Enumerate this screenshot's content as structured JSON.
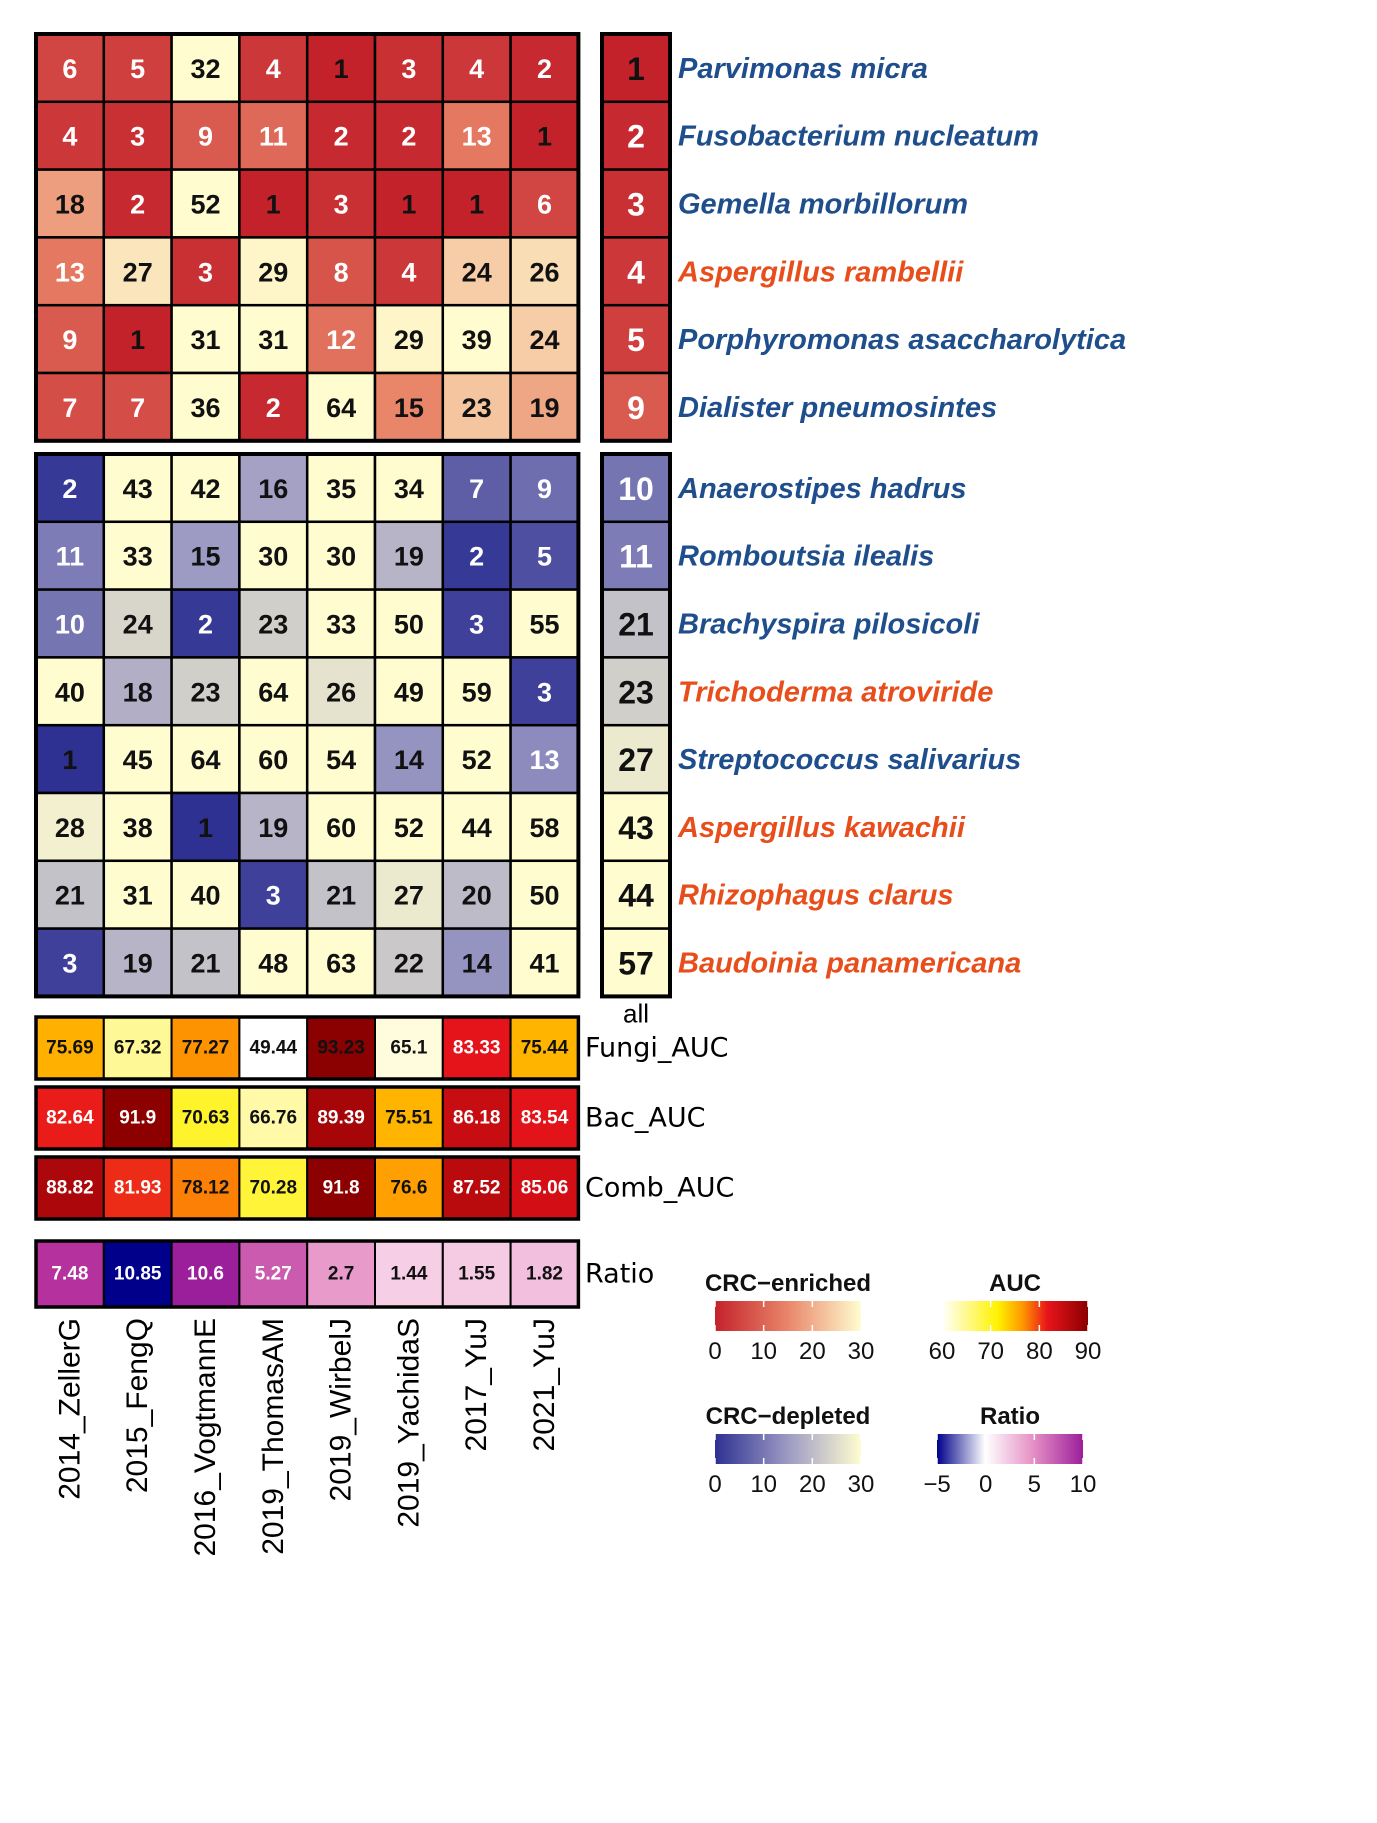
{
  "chart_data": {
    "type": "heatmap",
    "columns": [
      "2014_ZellerG",
      "2015_FengQ",
      "2016_VogtmannE",
      "2019_ThomasAM",
      "2019_WirbelJ",
      "2019_YachidaS",
      "2017_YuJ",
      "2021_YuJ"
    ],
    "all_column_label": "all",
    "enriched": {
      "rows": [
        {
          "species": "Parvimonas micra",
          "kingdom": "bacteria",
          "ranks": [
            6,
            5,
            32,
            4,
            1,
            3,
            4,
            2
          ],
          "all": 1
        },
        {
          "species": "Fusobacterium nucleatum",
          "kingdom": "bacteria",
          "ranks": [
            4,
            3,
            9,
            11,
            2,
            2,
            13,
            1
          ],
          "all": 2
        },
        {
          "species": "Gemella morbillorum",
          "kingdom": "bacteria",
          "ranks": [
            18,
            2,
            52,
            1,
            3,
            1,
            1,
            6
          ],
          "all": 3
        },
        {
          "species": "Aspergillus rambellii",
          "kingdom": "fungi",
          "ranks": [
            13,
            27,
            3,
            29,
            8,
            4,
            24,
            26
          ],
          "all": 4
        },
        {
          "species": "Porphyromonas asaccharolytica",
          "kingdom": "bacteria",
          "ranks": [
            9,
            1,
            31,
            31,
            12,
            29,
            39,
            24
          ],
          "all": 5
        },
        {
          "species": "Dialister pneumosintes",
          "kingdom": "bacteria",
          "ranks": [
            7,
            7,
            36,
            2,
            64,
            15,
            23,
            19
          ],
          "all": 9
        }
      ]
    },
    "depleted": {
      "rows": [
        {
          "species": "Anaerostipes hadrus",
          "kingdom": "bacteria",
          "ranks": [
            2,
            43,
            42,
            16,
            35,
            34,
            7,
            9
          ],
          "all": 10
        },
        {
          "species": "Romboutsia ilealis",
          "kingdom": "bacteria",
          "ranks": [
            11,
            33,
            15,
            30,
            30,
            19,
            2,
            5
          ],
          "all": 11
        },
        {
          "species": "Brachyspira pilosicoli",
          "kingdom": "bacteria",
          "ranks": [
            10,
            24,
            2,
            23,
            33,
            50,
            3,
            55
          ],
          "all": 21
        },
        {
          "species": "Trichoderma atroviride",
          "kingdom": "fungi",
          "ranks": [
            40,
            18,
            23,
            64,
            26,
            49,
            59,
            3
          ],
          "all": 23
        },
        {
          "species": "Streptococcus salivarius",
          "kingdom": "bacteria",
          "ranks": [
            1,
            45,
            64,
            60,
            54,
            14,
            52,
            13
          ],
          "all": 27
        },
        {
          "species": "Aspergillus kawachii",
          "kingdom": "fungi",
          "ranks": [
            28,
            38,
            1,
            19,
            60,
            52,
            44,
            58
          ],
          "all": 43
        },
        {
          "species": "Rhizophagus clarus",
          "kingdom": "fungi",
          "ranks": [
            21,
            31,
            40,
            3,
            21,
            27,
            20,
            50
          ],
          "all": 44
        },
        {
          "species": "Baudoinia panamericana",
          "kingdom": "fungi",
          "ranks": [
            3,
            19,
            21,
            48,
            63,
            22,
            14,
            41
          ],
          "all": 57
        }
      ]
    },
    "auc_rows": [
      {
        "label": "Fungi_AUC",
        "values": [
          75.69,
          67.32,
          77.27,
          49.44,
          93.23,
          65.1,
          83.33,
          75.44
        ]
      },
      {
        "label": "Bac_AUC",
        "values": [
          82.64,
          91.9,
          70.63,
          66.76,
          89.39,
          75.51,
          86.18,
          83.54
        ]
      },
      {
        "label": "Comb_AUC",
        "values": [
          88.82,
          81.93,
          78.12,
          70.28,
          91.8,
          76.6,
          87.52,
          85.06
        ]
      }
    ],
    "ratio_row": {
      "label": "Ratio",
      "values": [
        7.48,
        10.85,
        10.6,
        5.27,
        2.7,
        1.44,
        1.55,
        1.82
      ]
    },
    "legends": {
      "enriched": {
        "title": "CRC−enriched",
        "ticks": [
          "0",
          "10",
          "20",
          "30"
        ],
        "range": [
          0,
          30
        ]
      },
      "depleted": {
        "title": "CRC−depleted",
        "ticks": [
          "0",
          "10",
          "20",
          "30"
        ],
        "range": [
          0,
          30
        ]
      },
      "auc": {
        "title": "AUC",
        "ticks": [
          "60",
          "70",
          "80",
          "90"
        ],
        "range": [
          60,
          90
        ]
      },
      "ratio": {
        "title": "Ratio",
        "ticks": [
          "−5",
          "0",
          "5",
          "10"
        ],
        "range": [
          -5,
          10
        ]
      }
    }
  },
  "colors": {
    "bacteria_label": "#1f4e8c",
    "fungi_label": "#e84e1b",
    "enriched_low": "#c4222b",
    "enriched_high": "#fffdd0",
    "depleted_low": "#2e3192",
    "depleted_high": "#fffdd0",
    "auc_white": "#ffffff",
    "auc_yellow": "#fff200",
    "auc_orange": "#ff9900",
    "auc_red": "#e8141b",
    "auc_dark": "#8b0000",
    "ratio_navy": "#00008b",
    "ratio_white": "#ffffff",
    "ratio_pink": "#e58fc4",
    "ratio_purple": "#9b1f9b"
  }
}
